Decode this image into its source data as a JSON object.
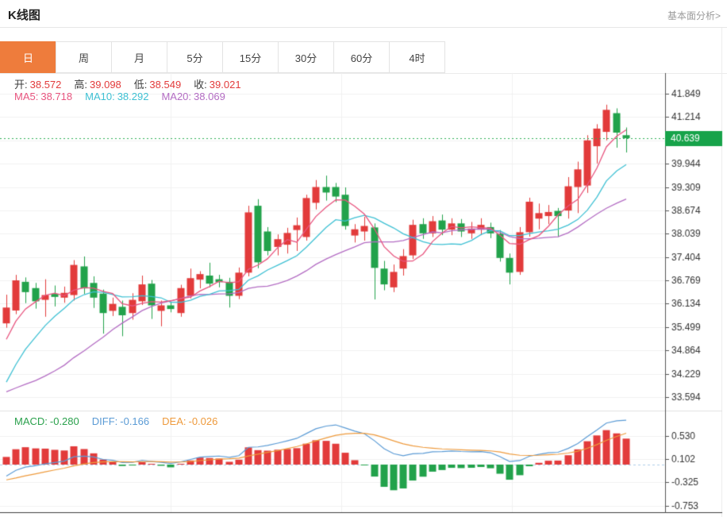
{
  "header": {
    "title": "K线图",
    "link": "基本面分析>"
  },
  "tabs": {
    "selected": 0,
    "items": [
      {
        "name": "day",
        "label": "日"
      },
      {
        "name": "week",
        "label": "周"
      },
      {
        "name": "month",
        "label": "月"
      },
      {
        "name": "5min",
        "label": "5分"
      },
      {
        "name": "15min",
        "label": "15分"
      },
      {
        "name": "30min",
        "label": "30分"
      },
      {
        "name": "60min",
        "label": "60分"
      },
      {
        "name": "4hour",
        "label": "4时"
      }
    ]
  },
  "ohlc_row": [
    {
      "name": "open",
      "label": "开:",
      "value": "38.572",
      "label_color": "#3c3c3c",
      "value_color": "#e23b3b"
    },
    {
      "name": "high",
      "label": "高:",
      "value": "39.098",
      "label_color": "#3c3c3c",
      "value_color": "#e23b3b"
    },
    {
      "name": "low",
      "label": "低:",
      "value": "38.549",
      "label_color": "#3c3c3c",
      "value_color": "#e23b3b"
    },
    {
      "name": "close",
      "label": "收:",
      "value": "39.021",
      "label_color": "#3c3c3c",
      "value_color": "#e23b3b"
    }
  ],
  "ma_row": [
    {
      "name": "ma5",
      "label": "MA5:",
      "value": "38.718",
      "label_color": "#e8557f",
      "value_color": "#e8557f"
    },
    {
      "name": "ma10",
      "label": "MA10:",
      "value": "38.292",
      "label_color": "#3ec0d3",
      "value_color": "#3ec0d3"
    },
    {
      "name": "ma20",
      "label": "MA20:",
      "value": "38.069",
      "label_color": "#b36cc3",
      "value_color": "#b36cc3"
    }
  ],
  "macd_row": [
    {
      "name": "macd",
      "label": "MACD:",
      "value": "-0.280",
      "label_color": "#2ba14d",
      "value_color": "#2ba14d"
    },
    {
      "name": "diff",
      "label": "DIFF:",
      "value": "-0.166",
      "label_color": "#5b9bd5",
      "value_color": "#5b9bd5"
    },
    {
      "name": "dea",
      "label": "DEA:",
      "value": "-0.026",
      "label_color": "#ee9a3c",
      "value_color": "#ee9a3c"
    }
  ],
  "chart_data": {
    "type": "candlestick+macd",
    "current_price": "40.639",
    "y_tick_labels": [
      "41.849",
      "41.214",
      "39.944",
      "39.309",
      "38.674",
      "38.039",
      "37.404",
      "36.769",
      "36.134",
      "35.499",
      "34.864",
      "34.229",
      "33.594"
    ],
    "y_axis_top": 41.849,
    "y_axis_step": 0.635,
    "y_axis_count": 14,
    "macd_tick_labels": [
      "0.530",
      "0.102",
      "-0.325",
      "-0.753"
    ],
    "macd_axis_values": [
      0.53,
      0.102,
      -0.325,
      -0.753
    ],
    "ma_windows": [
      5,
      10,
      20
    ],
    "macd_params": [
      12,
      26,
      9
    ],
    "candles_format": [
      "open",
      "high",
      "low",
      "close"
    ],
    "candles": [
      [
        35.6,
        36.38,
        35.48,
        36.03
      ],
      [
        35.95,
        36.92,
        35.85,
        36.77
      ],
      [
        36.73,
        36.85,
        36.15,
        36.45
      ],
      [
        36.56,
        36.7,
        36.0,
        36.2
      ],
      [
        36.24,
        36.8,
        35.78,
        36.37
      ],
      [
        36.4,
        36.63,
        36.06,
        36.32
      ],
      [
        36.3,
        36.6,
        36.16,
        36.43
      ],
      [
        36.37,
        37.32,
        36.22,
        37.19
      ],
      [
        37.15,
        37.42,
        36.4,
        36.55
      ],
      [
        36.7,
        36.88,
        36.02,
        36.3
      ],
      [
        36.41,
        36.52,
        35.32,
        35.88
      ],
      [
        35.94,
        36.3,
        35.8,
        36.13
      ],
      [
        36.05,
        36.22,
        35.25,
        35.82
      ],
      [
        35.88,
        36.42,
        35.7,
        36.24
      ],
      [
        36.2,
        36.9,
        36.1,
        36.66
      ],
      [
        36.68,
        36.78,
        35.72,
        36.09
      ],
      [
        35.94,
        36.22,
        35.52,
        36.09
      ],
      [
        36.09,
        36.18,
        35.9,
        35.99
      ],
      [
        35.88,
        36.65,
        35.78,
        36.56
      ],
      [
        36.35,
        37.09,
        36.28,
        36.83
      ],
      [
        36.79,
        37.02,
        36.55,
        36.94
      ],
      [
        36.9,
        37.25,
        36.58,
        36.68
      ],
      [
        36.8,
        36.92,
        36.58,
        36.72
      ],
      [
        36.73,
        36.84,
        36.03,
        36.35
      ],
      [
        36.35,
        37.12,
        36.26,
        36.98
      ],
      [
        36.98,
        38.8,
        36.88,
        38.62
      ],
      [
        38.8,
        38.98,
        37.1,
        37.26
      ],
      [
        38.1,
        38.22,
        37.45,
        37.57
      ],
      [
        37.68,
        38.02,
        37.45,
        37.89
      ],
      [
        37.74,
        38.2,
        37.5,
        38.06
      ],
      [
        38.14,
        38.48,
        37.57,
        38.27
      ],
      [
        37.95,
        39.1,
        37.85,
        39.01
      ],
      [
        38.88,
        39.5,
        38.7,
        39.31
      ],
      [
        39.31,
        39.62,
        38.94,
        39.16
      ],
      [
        39.31,
        39.42,
        38.9,
        39.05
      ],
      [
        39.1,
        39.3,
        38.15,
        38.25
      ],
      [
        37.99,
        38.3,
        37.8,
        38.16
      ],
      [
        38.1,
        38.5,
        37.85,
        38.25
      ],
      [
        38.21,
        38.32,
        36.25,
        37.11
      ],
      [
        37.09,
        37.3,
        36.5,
        36.66
      ],
      [
        36.58,
        37.2,
        36.45,
        37.0
      ],
      [
        37.09,
        37.62,
        36.9,
        37.43
      ],
      [
        37.45,
        38.42,
        37.35,
        38.28
      ],
      [
        38.3,
        38.46,
        37.9,
        38.05
      ],
      [
        38.05,
        38.52,
        37.95,
        38.38
      ],
      [
        38.4,
        38.56,
        38.0,
        38.15
      ],
      [
        38.15,
        38.46,
        38.0,
        38.32
      ],
      [
        38.32,
        38.44,
        37.95,
        38.1
      ],
      [
        38.05,
        38.36,
        37.9,
        38.18
      ],
      [
        38.15,
        38.46,
        38.0,
        38.28
      ],
      [
        38.22,
        38.34,
        37.92,
        38.05
      ],
      [
        38.04,
        38.14,
        37.28,
        37.38
      ],
      [
        37.38,
        37.5,
        36.66,
        36.98
      ],
      [
        37.0,
        38.22,
        36.92,
        38.08
      ],
      [
        38.08,
        39.02,
        37.96,
        38.91
      ],
      [
        38.45,
        38.86,
        38.16,
        38.6
      ],
      [
        38.52,
        38.82,
        38.3,
        38.63
      ],
      [
        38.66,
        38.74,
        37.95,
        38.52
      ],
      [
        38.67,
        39.58,
        38.45,
        39.33
      ],
      [
        39.31,
        40.0,
        38.6,
        39.79
      ],
      [
        39.35,
        40.72,
        39.15,
        40.58
      ],
      [
        40.42,
        41.02,
        39.95,
        40.9
      ],
      [
        40.81,
        41.55,
        40.58,
        41.41
      ],
      [
        41.32,
        41.45,
        40.38,
        40.79
      ],
      [
        40.72,
        40.93,
        40.25,
        40.64
      ]
    ],
    "colors": {
      "up": "#e23b3b",
      "down": "#22a24b",
      "ma5": "#e8557f",
      "ma10": "#3ec0d3",
      "ma20": "#b36cc3",
      "diff_line": "#5b9bd5",
      "dea_line": "#ee9a3c",
      "price_line": "#2fae57",
      "price_label_bg": "#17a34a",
      "grid": "#f1f1f1",
      "axis": "#555555",
      "tick_text": "#333333",
      "macd_zero_dash": "#aecde8"
    }
  }
}
